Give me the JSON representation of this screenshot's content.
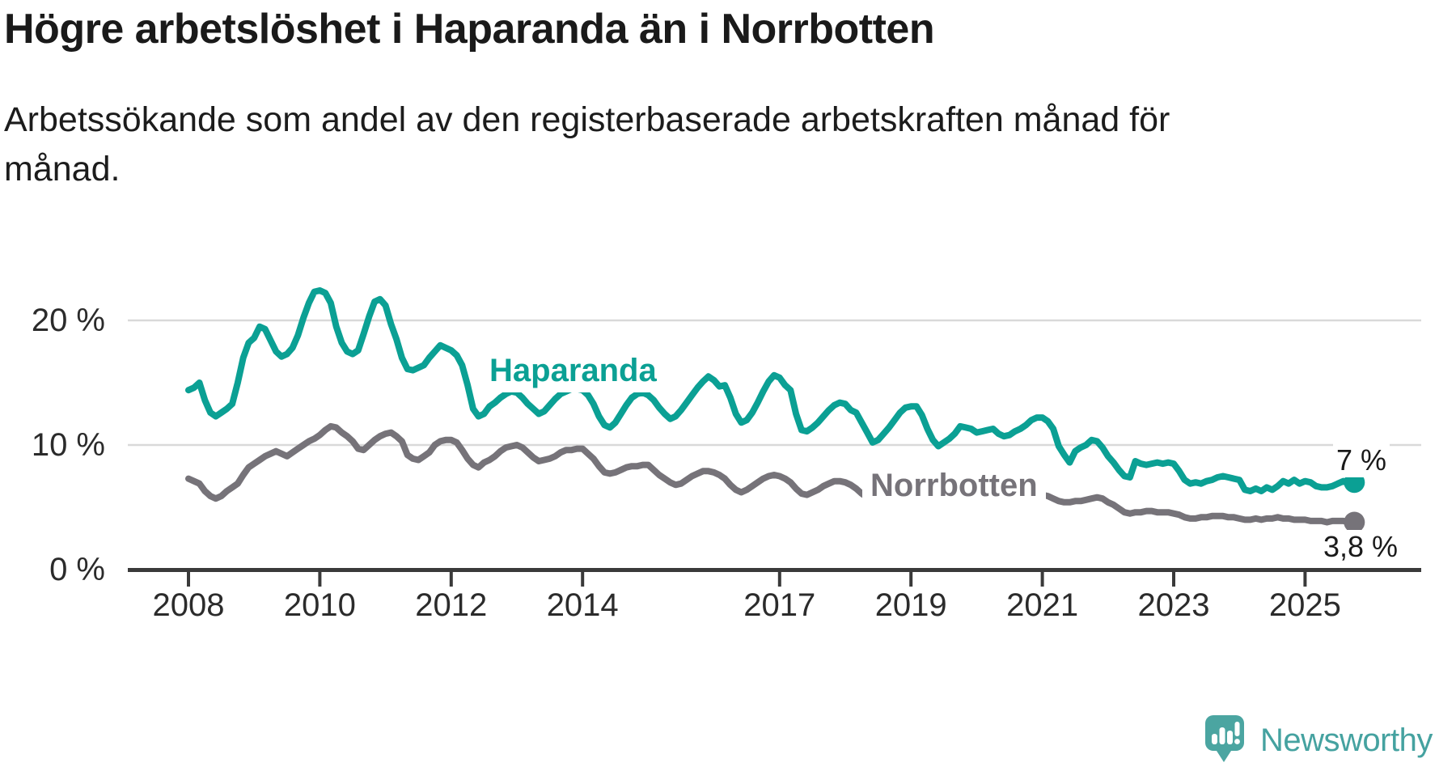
{
  "title": "Högre arbetslöshet i Haparanda än i Norrbotten",
  "subtitle": "Arbetssökande som andel av den registerbaserade arbetskraften månad för månad.",
  "branding": {
    "logo_text": "Newsworthy",
    "logo_color": "#4ba5a1",
    "logo_text_color": "#45a2a0"
  },
  "chart_data": {
    "type": "line",
    "title": "Högre arbetslöshet i Haparanda än i Norrbotten",
    "subtitle": "Arbetssökande som andel av den registerbaserade arbetskraften månad för månad.",
    "x_unit": "month",
    "x_start": "2008-01",
    "x_end": "2025-10",
    "xlim": [
      2008,
      2026
    ],
    "ylim": [
      0,
      24
    ],
    "grid": "horizontal-only",
    "grid_color": "#d9d9d9",
    "axis_color": "#3a3a3a",
    "x_tick_years": [
      2008,
      2010,
      2012,
      2014,
      2017,
      2019,
      2021,
      2023,
      2025
    ],
    "x_tick_labels": [
      "2008",
      "2010",
      "2012",
      "2014",
      "2017",
      "2019",
      "2021",
      "2023",
      "2025"
    ],
    "y_ticks": [
      {
        "value": 20,
        "label": "20 %",
        "gridline": true
      },
      {
        "value": 10,
        "label": "10 %",
        "gridline": true
      },
      {
        "value": 0,
        "label": "0 %",
        "gridline": false
      }
    ],
    "series": [
      {
        "name": "Haparanda",
        "color": "#0ba094",
        "end_label": "7 %",
        "last_value": 7.0,
        "start": "2008-01",
        "values": [
          14.4,
          14.6,
          15.0,
          13.6,
          12.6,
          12.3,
          12.6,
          12.9,
          13.3,
          15.0,
          17.0,
          18.2,
          18.6,
          19.5,
          19.3,
          18.4,
          17.5,
          17.1,
          17.3,
          17.8,
          18.8,
          20.2,
          21.4,
          22.3,
          22.4,
          22.2,
          21.4,
          19.5,
          18.2,
          17.5,
          17.3,
          17.6,
          18.9,
          20.3,
          21.5,
          21.7,
          21.2,
          19.7,
          18.5,
          17.0,
          16.1,
          16.0,
          16.2,
          16.4,
          17.0,
          17.5,
          18.0,
          17.8,
          17.6,
          17.2,
          16.4,
          14.8,
          12.9,
          12.3,
          12.5,
          13.1,
          13.4,
          13.8,
          14.1,
          14.3,
          14.2,
          13.8,
          13.3,
          12.9,
          12.5,
          12.7,
          13.2,
          13.7,
          14.1,
          14.3,
          14.5,
          14.5,
          14.4,
          14.0,
          13.3,
          12.3,
          11.6,
          11.4,
          11.8,
          12.5,
          13.2,
          13.8,
          14.1,
          14.2,
          14.0,
          13.6,
          13.0,
          12.5,
          12.1,
          12.3,
          12.8,
          13.4,
          14.0,
          14.6,
          15.1,
          15.5,
          15.2,
          14.7,
          14.8,
          13.8,
          12.5,
          11.8,
          12.0,
          12.6,
          13.4,
          14.3,
          15.1,
          15.6,
          15.4,
          14.8,
          14.4,
          12.5,
          11.2,
          11.1,
          11.4,
          11.8,
          12.3,
          12.8,
          13.2,
          13.4,
          13.3,
          12.8,
          12.6,
          11.8,
          11.0,
          10.2,
          10.4,
          10.9,
          11.4,
          12.0,
          12.6,
          13.0,
          13.1,
          13.1,
          12.4,
          11.3,
          10.4,
          9.9,
          10.2,
          10.5,
          10.9,
          11.5,
          11.4,
          11.3,
          11.0,
          11.1,
          11.2,
          11.3,
          10.9,
          10.7,
          10.8,
          11.1,
          11.3,
          11.6,
          12.0,
          12.2,
          12.2,
          11.9,
          11.3,
          9.9,
          9.2,
          8.6,
          9.5,
          9.8,
          10.0,
          10.4,
          10.3,
          9.8,
          9.1,
          8.6,
          8.0,
          7.5,
          7.4,
          8.7,
          8.5,
          8.4,
          8.5,
          8.6,
          8.5,
          8.6,
          8.5,
          7.9,
          7.2,
          6.9,
          7.0,
          6.9,
          7.1,
          7.2,
          7.4,
          7.5,
          7.4,
          7.3,
          7.2,
          6.4,
          6.3,
          6.5,
          6.3,
          6.6,
          6.4,
          6.7,
          7.1,
          6.9,
          7.2,
          6.9,
          7.1,
          7.0,
          6.7,
          6.6,
          6.6,
          6.7,
          6.9,
          7.1,
          6.9,
          7.0
        ]
      },
      {
        "name": "Norrbotten",
        "color": "#767379",
        "end_label": "3,8 %",
        "last_value": 3.8,
        "start": "2008-01",
        "values": [
          7.3,
          7.1,
          6.9,
          6.3,
          5.9,
          5.7,
          5.9,
          6.3,
          6.6,
          6.9,
          7.6,
          8.2,
          8.5,
          8.8,
          9.1,
          9.3,
          9.5,
          9.3,
          9.1,
          9.4,
          9.7,
          10.0,
          10.3,
          10.5,
          10.8,
          11.2,
          11.5,
          11.4,
          11.0,
          10.7,
          10.3,
          9.7,
          9.6,
          10.0,
          10.4,
          10.7,
          10.9,
          11.0,
          10.7,
          10.3,
          9.2,
          8.9,
          8.8,
          9.1,
          9.4,
          10.0,
          10.3,
          10.4,
          10.4,
          10.2,
          9.6,
          8.9,
          8.4,
          8.2,
          8.6,
          8.8,
          9.1,
          9.5,
          9.8,
          9.9,
          10.0,
          9.8,
          9.4,
          9.0,
          8.7,
          8.8,
          8.9,
          9.1,
          9.4,
          9.6,
          9.6,
          9.7,
          9.7,
          9.3,
          8.9,
          8.3,
          7.8,
          7.7,
          7.8,
          8.0,
          8.2,
          8.3,
          8.3,
          8.4,
          8.4,
          8.0,
          7.6,
          7.3,
          7.0,
          6.8,
          6.9,
          7.2,
          7.5,
          7.7,
          7.9,
          7.9,
          7.8,
          7.6,
          7.3,
          6.8,
          6.4,
          6.2,
          6.4,
          6.7,
          7.0,
          7.3,
          7.5,
          7.6,
          7.5,
          7.3,
          7.0,
          6.5,
          6.1,
          6.0,
          6.2,
          6.4,
          6.7,
          6.9,
          7.1,
          7.1,
          7.0,
          6.8,
          6.5,
          6.1,
          5.8,
          5.6,
          5.7,
          5.8,
          6.0,
          6.1,
          6.2,
          6.3,
          6.3,
          6.2,
          6.1,
          5.9,
          5.7,
          5.6,
          5.7,
          5.8,
          5.9,
          6.0,
          6.0,
          6.1,
          6.0,
          6.0,
          6.2,
          6.5,
          6.6,
          6.6,
          6.5,
          6.4,
          6.3,
          6.2,
          6.1,
          6.1,
          6.0,
          5.9,
          5.7,
          5.5,
          5.4,
          5.4,
          5.5,
          5.5,
          5.6,
          5.7,
          5.8,
          5.7,
          5.4,
          5.2,
          4.9,
          4.6,
          4.5,
          4.6,
          4.6,
          4.7,
          4.7,
          4.6,
          4.6,
          4.6,
          4.5,
          4.4,
          4.2,
          4.1,
          4.1,
          4.2,
          4.2,
          4.3,
          4.3,
          4.3,
          4.2,
          4.2,
          4.1,
          4.0,
          4.0,
          4.1,
          4.0,
          4.1,
          4.1,
          4.2,
          4.1,
          4.1,
          4.0,
          4.0,
          4.0,
          3.9,
          3.9,
          3.9,
          3.8,
          3.9,
          3.9,
          3.9,
          3.8,
          3.8
        ]
      }
    ]
  }
}
